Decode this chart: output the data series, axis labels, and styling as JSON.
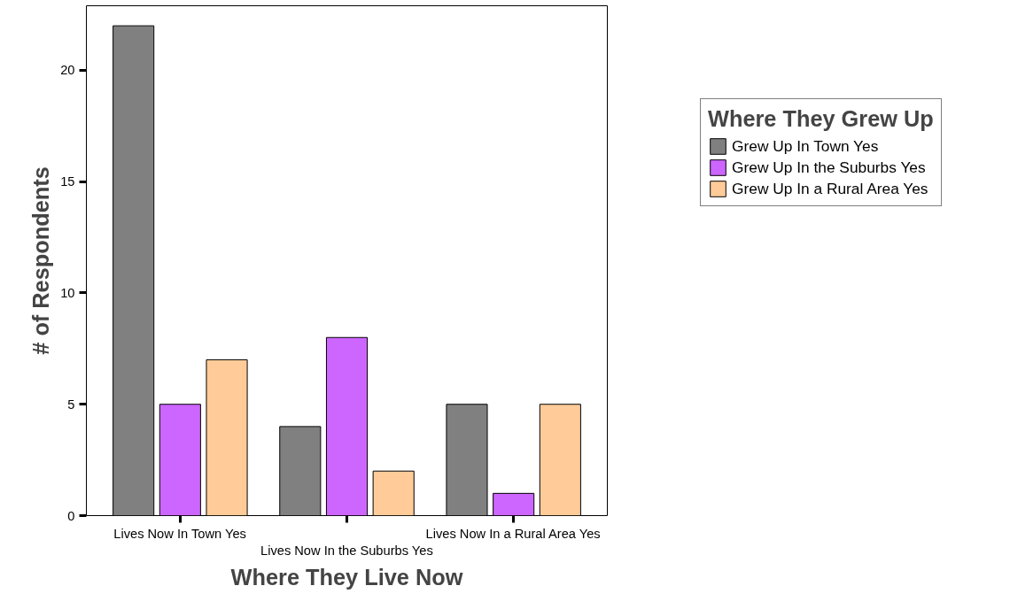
{
  "chart_data": {
    "type": "bar",
    "xlabel": "Where They Live Now",
    "ylabel": "# of Respondents",
    "legend_title": "Where They Grew Up",
    "categories": [
      "Lives Now In Town Yes",
      "Lives Now In the Suburbs Yes",
      "Lives Now In a Rural Area Yes"
    ],
    "series": [
      {
        "name": "Grew Up In Town Yes",
        "color": "#808080",
        "values": [
          22,
          4,
          5
        ]
      },
      {
        "name": "Grew Up In the Suburbs Yes",
        "color": "#cc66ff",
        "values": [
          5,
          8,
          1
        ]
      },
      {
        "name": "Grew Up In a Rural Area Yes",
        "color": "#ffcc99",
        "values": [
          7,
          2,
          5
        ]
      }
    ],
    "ylim": [
      0,
      22.9
    ],
    "yticks": [
      0,
      5,
      10,
      15,
      20
    ],
    "grid": false,
    "legend": "top right"
  }
}
